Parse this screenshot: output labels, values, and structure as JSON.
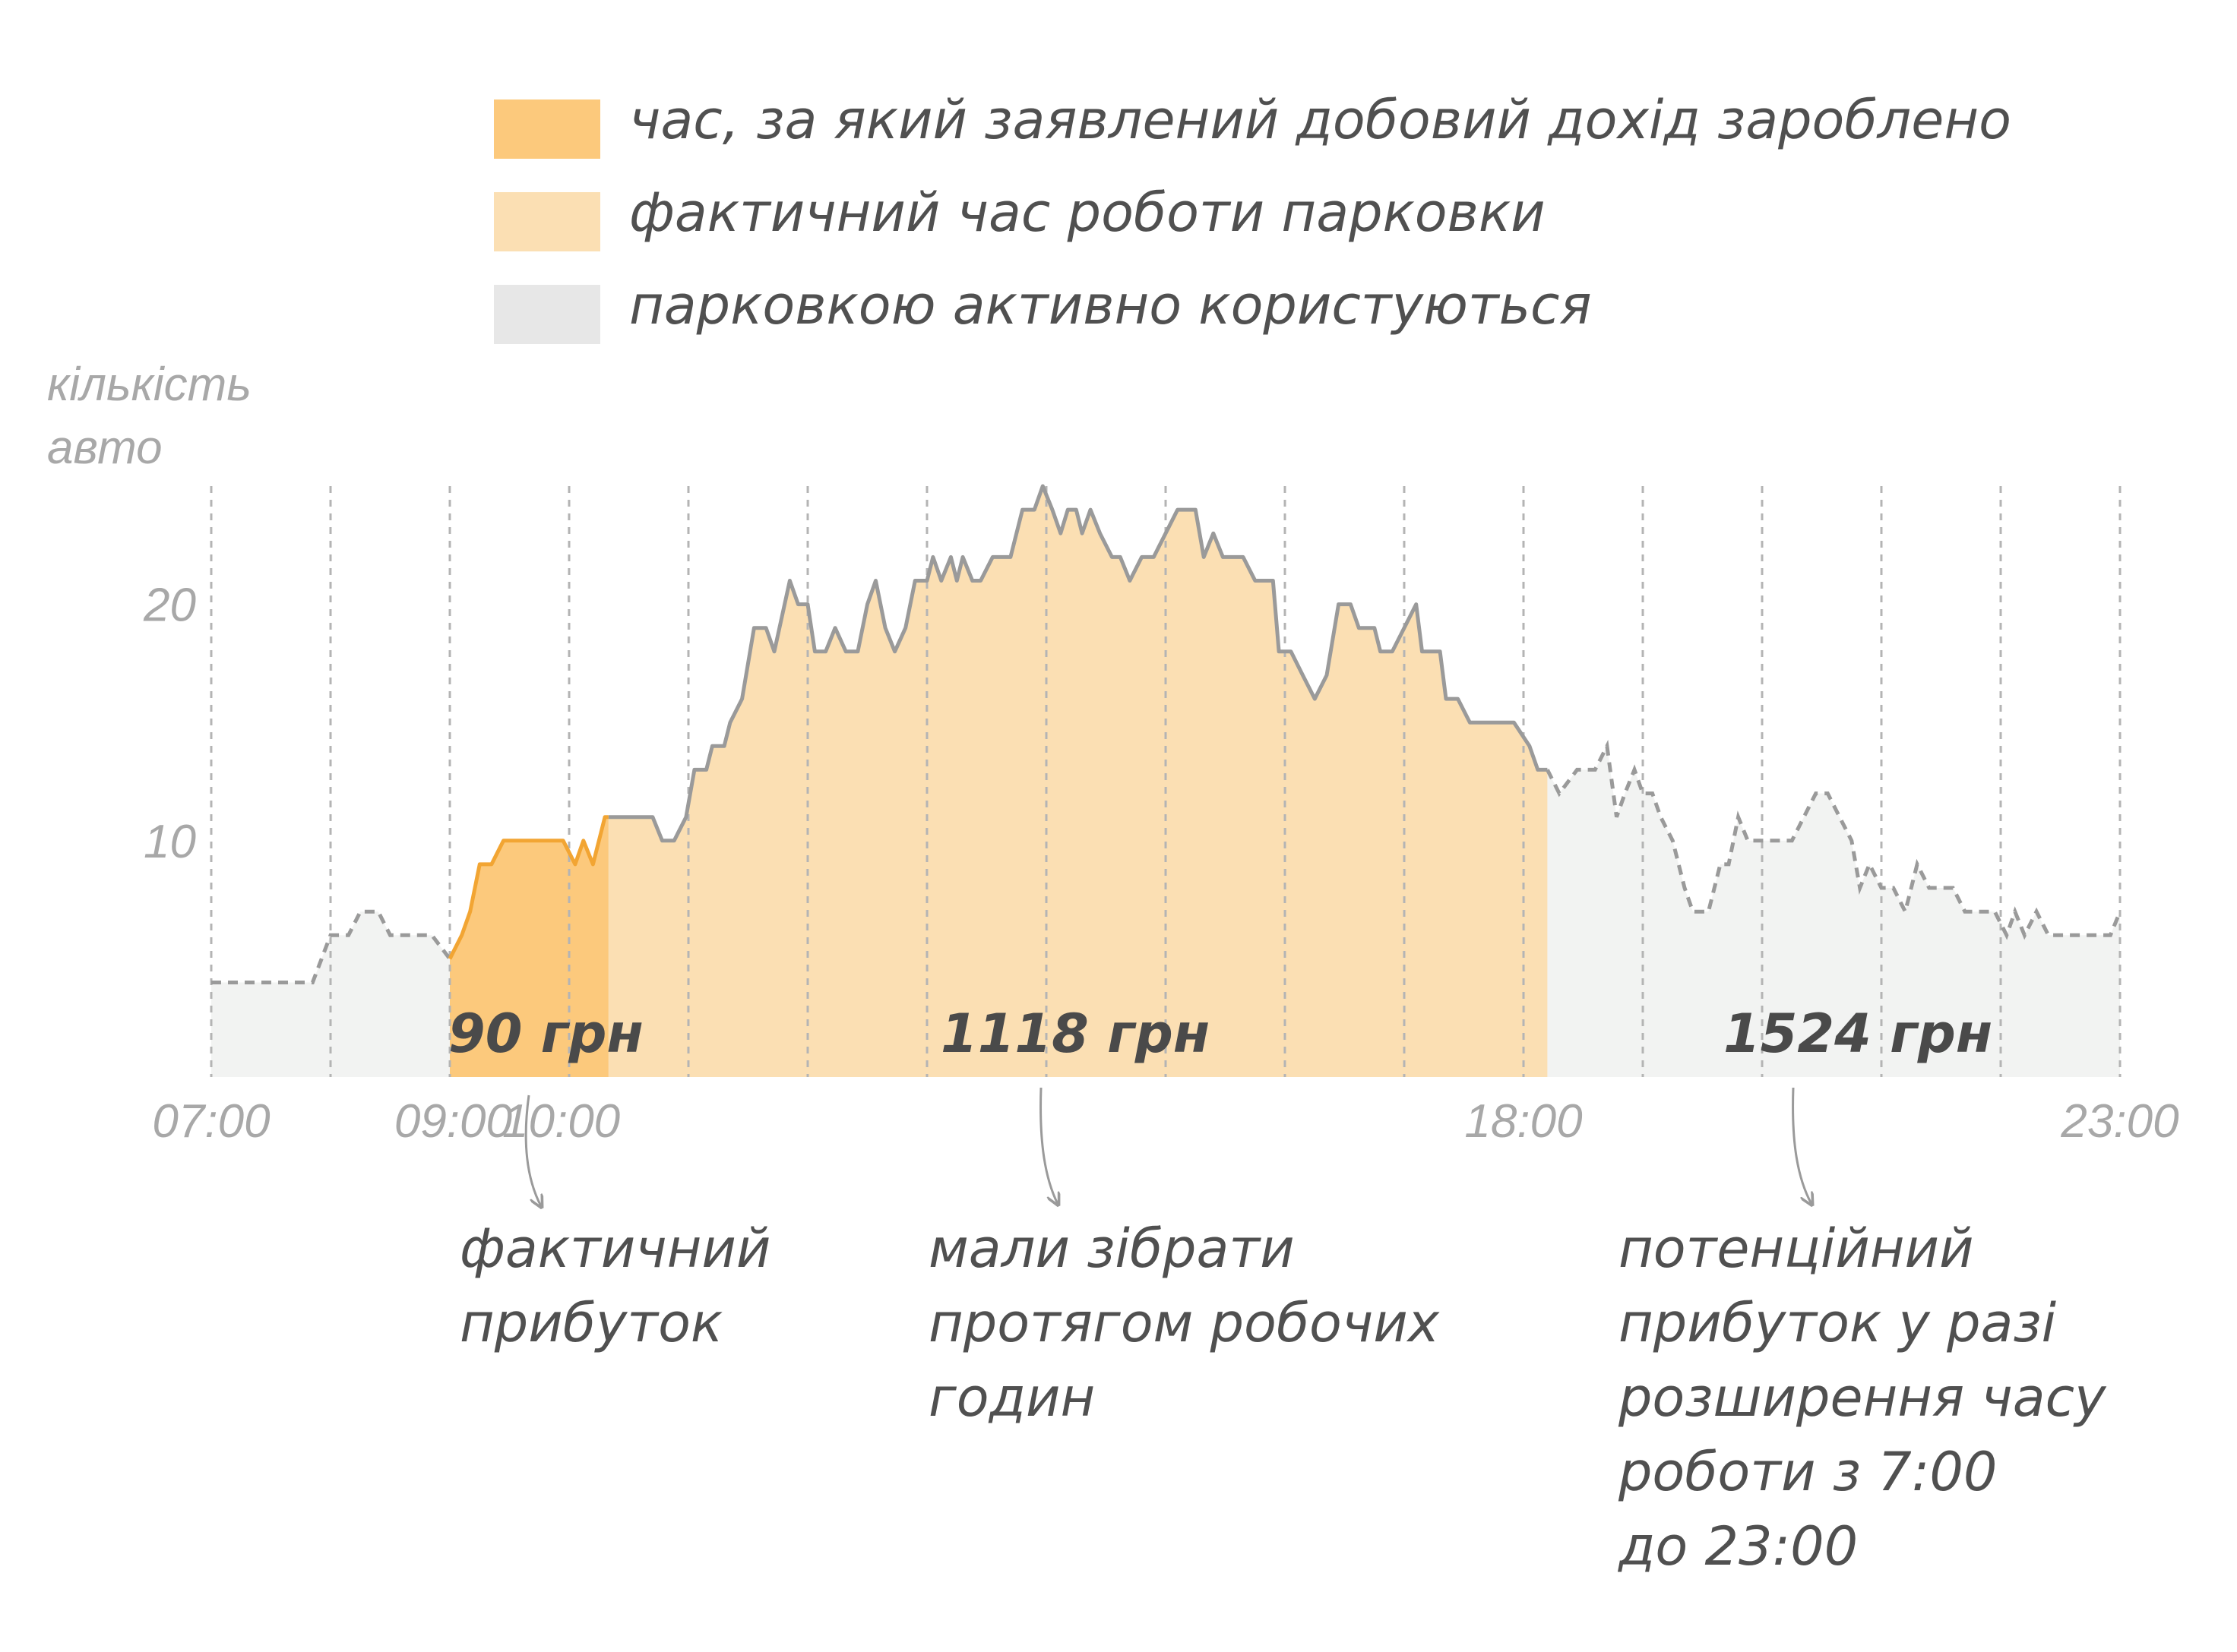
{
  "chart_data": {
    "type": "area",
    "title": "",
    "ylabel": [
      "кількість",
      "авто"
    ],
    "xlabel": "",
    "x_unit": "hours",
    "xlim": [
      7,
      23
    ],
    "ylim": [
      0,
      25
    ],
    "grid": "vertical-hourly-dashed",
    "y_ticks": [
      {
        "value": 10,
        "label": "10"
      },
      {
        "value": 20,
        "label": "20"
      }
    ],
    "x_ticks": [
      {
        "value": 7,
        "label": "07:00"
      },
      {
        "value": 9,
        "label": "09:00"
      },
      {
        "value": 10,
        "label": "10:00"
      },
      {
        "value": 18,
        "label": "18:00"
      },
      {
        "value": 23,
        "label": "23:00"
      }
    ],
    "legend": [
      {
        "label": "час, за який заявлений добовий дохід зароблено",
        "color": "#fcc97c"
      },
      {
        "label": "фактичний час роботи парковки",
        "color": "#fbdfb3"
      },
      {
        "label": "парковкою активно користуються",
        "color": "#e7e7e7"
      }
    ],
    "bands": [
      {
        "name": "declared",
        "from": 9.0,
        "to": 10.33,
        "fill": "#fcc97c",
        "line": "#f2a533"
      },
      {
        "name": "actual",
        "from": 10.33,
        "to": 18.2,
        "fill": "#fbdfb3",
        "line": "#9a9a9a"
      },
      {
        "name": "active",
        "from": 7.0,
        "to": 23.0,
        "fill": "#f2f3f2",
        "line": "#9a9a9a"
      }
    ],
    "series": [
      {
        "points": [
          [
            7.0,
            4
          ],
          [
            7.85,
            4
          ],
          [
            8.0,
            6
          ],
          [
            8.15,
            6
          ],
          [
            8.25,
            7
          ],
          [
            8.4,
            7
          ],
          [
            8.5,
            6
          ],
          [
            8.7,
            6
          ],
          [
            8.85,
            6
          ],
          [
            9.0,
            5
          ],
          [
            9.1,
            6
          ],
          [
            9.17,
            7
          ],
          [
            9.25,
            9
          ],
          [
            9.35,
            9
          ],
          [
            9.45,
            10
          ],
          [
            9.75,
            10
          ],
          [
            9.95,
            10
          ],
          [
            10.05,
            9
          ],
          [
            10.12,
            10
          ],
          [
            10.2,
            9
          ],
          [
            10.3,
            11
          ],
          [
            10.5,
            11
          ],
          [
            10.7,
            11
          ],
          [
            10.78,
            10
          ],
          [
            10.88,
            10
          ],
          [
            10.98,
            11
          ],
          [
            11.05,
            13
          ],
          [
            11.15,
            13
          ],
          [
            11.2,
            14
          ],
          [
            11.3,
            14
          ],
          [
            11.35,
            15
          ],
          [
            11.45,
            16
          ],
          [
            11.55,
            19
          ],
          [
            11.65,
            19
          ],
          [
            11.72,
            18
          ],
          [
            11.85,
            21
          ],
          [
            11.92,
            20
          ],
          [
            12.0,
            20
          ],
          [
            12.06,
            18
          ],
          [
            12.15,
            18
          ],
          [
            12.23,
            19
          ],
          [
            12.32,
            18
          ],
          [
            12.42,
            18
          ],
          [
            12.5,
            20
          ],
          [
            12.57,
            21
          ],
          [
            12.65,
            19
          ],
          [
            12.73,
            18
          ],
          [
            12.82,
            19
          ],
          [
            12.9,
            21
          ],
          [
            13.0,
            21
          ],
          [
            13.05,
            22
          ],
          [
            13.12,
            21
          ],
          [
            13.2,
            22
          ],
          [
            13.25,
            21
          ],
          [
            13.3,
            22
          ],
          [
            13.38,
            21
          ],
          [
            13.45,
            21
          ],
          [
            13.55,
            22
          ],
          [
            13.7,
            22
          ],
          [
            13.8,
            24
          ],
          [
            13.9,
            24
          ],
          [
            13.97,
            25
          ],
          [
            14.05,
            24
          ],
          [
            14.12,
            23
          ],
          [
            14.18,
            24
          ],
          [
            14.25,
            24
          ],
          [
            14.3,
            23
          ],
          [
            14.37,
            24
          ],
          [
            14.45,
            23
          ],
          [
            14.55,
            22
          ],
          [
            14.62,
            22
          ],
          [
            14.7,
            21
          ],
          [
            14.8,
            22
          ],
          [
            14.9,
            22
          ],
          [
            15.0,
            23
          ],
          [
            15.1,
            24
          ],
          [
            15.25,
            24
          ],
          [
            15.32,
            22
          ],
          [
            15.4,
            23
          ],
          [
            15.48,
            22
          ],
          [
            15.65,
            22
          ],
          [
            15.75,
            21
          ],
          [
            15.9,
            21
          ],
          [
            15.95,
            18
          ],
          [
            16.05,
            18
          ],
          [
            16.15,
            17
          ],
          [
            16.25,
            16
          ],
          [
            16.35,
            17
          ],
          [
            16.45,
            20
          ],
          [
            16.55,
            20
          ],
          [
            16.62,
            19
          ],
          [
            16.75,
            19
          ],
          [
            16.8,
            18
          ],
          [
            16.9,
            18
          ],
          [
            17.0,
            19
          ],
          [
            17.1,
            20
          ],
          [
            17.15,
            18
          ],
          [
            17.3,
            18
          ],
          [
            17.35,
            16
          ],
          [
            17.45,
            16
          ],
          [
            17.55,
            15
          ],
          [
            17.7,
            15
          ],
          [
            17.8,
            15
          ],
          [
            17.92,
            15
          ],
          [
            18.05,
            14
          ],
          [
            18.12,
            13
          ],
          [
            18.2,
            13
          ],
          [
            18.3,
            12
          ],
          [
            18.45,
            13
          ],
          [
            18.6,
            13
          ],
          [
            18.7,
            14
          ],
          [
            18.78,
            11
          ],
          [
            18.85,
            12
          ],
          [
            18.93,
            13
          ],
          [
            19.0,
            12
          ],
          [
            19.08,
            12
          ],
          [
            19.15,
            11
          ],
          [
            19.25,
            10
          ],
          [
            19.35,
            8
          ],
          [
            19.42,
            7
          ],
          [
            19.55,
            7
          ],
          [
            19.65,
            9
          ],
          [
            19.72,
            9
          ],
          [
            19.8,
            11
          ],
          [
            19.88,
            10
          ],
          [
            20.0,
            10
          ],
          [
            20.1,
            10
          ],
          [
            20.25,
            10
          ],
          [
            20.35,
            11
          ],
          [
            20.45,
            12
          ],
          [
            20.55,
            12
          ],
          [
            20.65,
            11
          ],
          [
            20.75,
            10
          ],
          [
            20.82,
            8
          ],
          [
            20.9,
            9
          ],
          [
            21.0,
            8
          ],
          [
            21.1,
            8
          ],
          [
            21.2,
            7
          ],
          [
            21.3,
            9
          ],
          [
            21.4,
            8
          ],
          [
            21.6,
            8
          ],
          [
            21.7,
            7
          ],
          [
            21.95,
            7
          ],
          [
            22.05,
            6
          ],
          [
            22.12,
            7
          ],
          [
            22.2,
            6
          ],
          [
            22.3,
            7
          ],
          [
            22.4,
            6
          ],
          [
            22.55,
            6
          ],
          [
            22.8,
            6
          ],
          [
            22.92,
            6
          ],
          [
            23.0,
            7
          ]
        ]
      }
    ],
    "annotations": [
      {
        "amount": "90 грн",
        "text": [
          "фактичний",
          "прибуток"
        ]
      },
      {
        "amount": "1118 грн",
        "text": [
          "мали зібрати",
          "протягом робочих",
          "годин"
        ]
      },
      {
        "amount": "1524 грн",
        "text": [
          "потенційний",
          "прибуток у разі",
          "розширення часу",
          "роботи з 7:00",
          "до 23:00"
        ]
      }
    ]
  }
}
